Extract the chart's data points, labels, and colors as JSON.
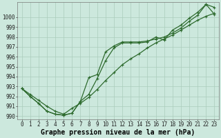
{
  "title": "Graphe pression niveau de la mer (hPa)",
  "hours": [
    0,
    1,
    2,
    3,
    4,
    5,
    6,
    7,
    8,
    9,
    10,
    11,
    12,
    13,
    14,
    15,
    16,
    17,
    18,
    19,
    20,
    21,
    22,
    23
  ],
  "line_straight": [
    992.8,
    992.2,
    991.6,
    991.0,
    990.5,
    990.2,
    990.8,
    991.3,
    991.9,
    992.7,
    993.6,
    994.4,
    995.2,
    995.8,
    996.3,
    996.9,
    997.4,
    997.8,
    998.2,
    998.7,
    999.2,
    999.7,
    1000.1,
    1000.4
  ],
  "line_upper": [
    992.8,
    992.0,
    991.3,
    990.5,
    990.2,
    990.1,
    990.3,
    991.5,
    993.9,
    994.2,
    996.5,
    997.1,
    997.5,
    997.5,
    997.5,
    997.6,
    997.8,
    998.0,
    998.4,
    998.9,
    999.6,
    1000.2,
    1001.3,
    1001.0
  ],
  "line_lower": [
    992.8,
    992.0,
    991.3,
    990.5,
    990.2,
    990.1,
    990.3,
    991.5,
    992.2,
    993.8,
    995.6,
    996.9,
    997.4,
    997.4,
    997.4,
    997.5,
    998.0,
    997.7,
    998.7,
    999.2,
    999.9,
    1000.5,
    1001.3,
    1000.3
  ],
  "line_color": "#2d6a2d",
  "bg_color": "#cce8dd",
  "grid_color": "#aaccbb",
  "ylim": [
    989.7,
    1001.5
  ],
  "yticks": [
    990,
    991,
    992,
    993,
    994,
    995,
    996,
    997,
    998,
    999,
    1000
  ],
  "tick_fontsize": 5.5,
  "title_fontsize": 7.0,
  "marker": "+"
}
